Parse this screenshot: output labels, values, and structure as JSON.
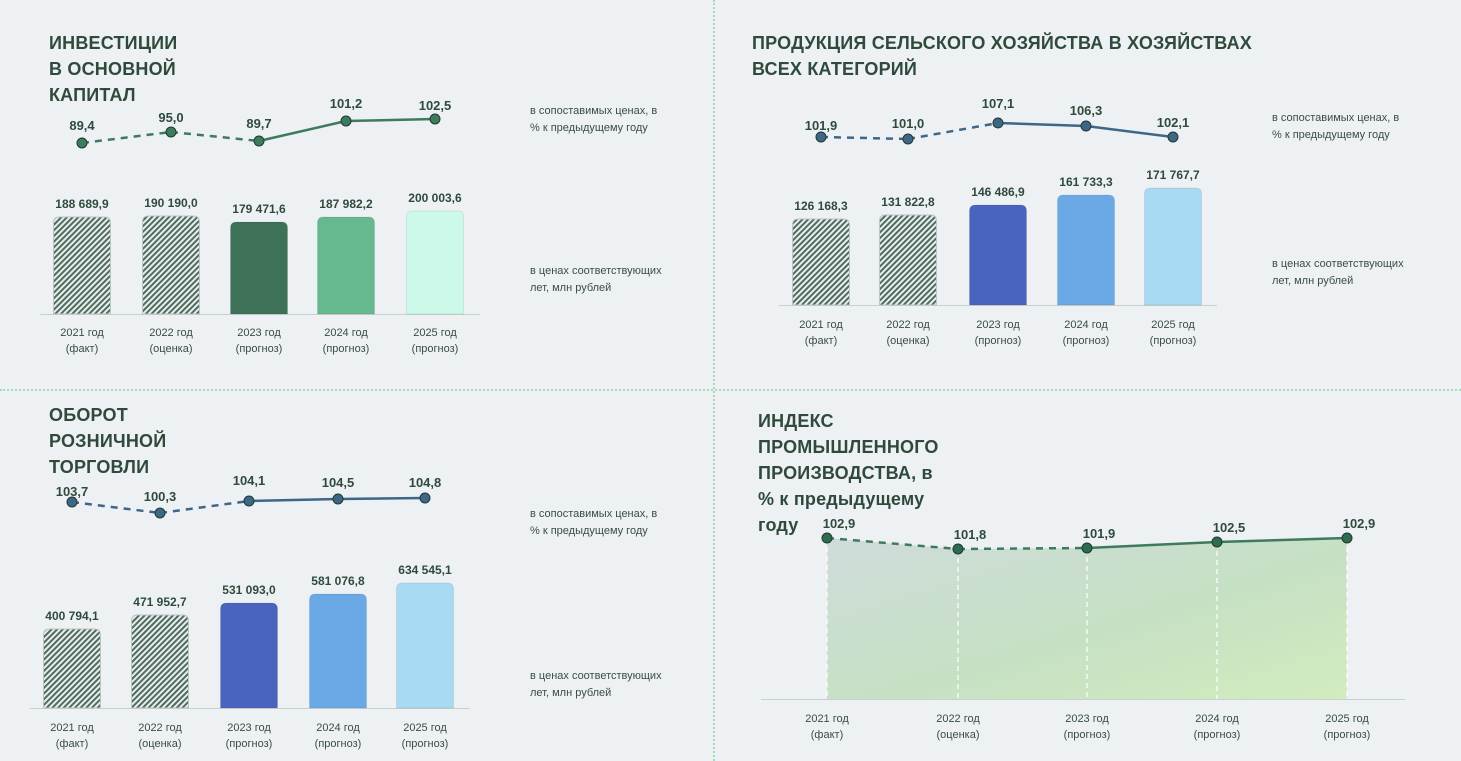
{
  "colors": {
    "green_dark": "#2f6b4f",
    "green_line": "#3e7a5e",
    "blue_line": "#3e6687",
    "investment_bars": [
      "#hatch",
      "#hatch",
      "#3d7158",
      "#66b88f",
      "#cdf9ea"
    ],
    "blue_bars": [
      "#hatch",
      "#hatch",
      "#4a63bd",
      "#6aa9e5",
      "#a8daf1"
    ]
  },
  "notes": {
    "comparable": "в сопоставимых ценах, в % к предыдущему году",
    "current": "в ценах соответствующих лет, млн рублей"
  },
  "panels": {
    "investment": {
      "title": "ИНВЕСТИЦИИ В ОСНОВНОЙ КАПИТАЛ"
    },
    "agriculture": {
      "title": "ПРОДУКЦИЯ СЕЛЬСКОГО ХОЗЯЙСТВА В ХОЗЯЙСТВАХ ВСЕХ КАТЕГОРИЙ"
    },
    "retail": {
      "title": "ОБОРОТ РОЗНИЧНОЙ ТОРГОВЛИ"
    },
    "industry": {
      "title": "ИНДЕКС ПРОМЫШЛЕННОГО ПРОИЗВОДСТВА, в % к предыдущему году"
    }
  },
  "chart_data": [
    {
      "id": "investment",
      "type": "bar",
      "categories": [
        [
          "2021 год",
          "(факт)"
        ],
        [
          "2022 год",
          "(оценка)"
        ],
        [
          "2023 год",
          "(прогноз)"
        ],
        [
          "2024 год",
          "(прогноз)"
        ],
        [
          "2025 год",
          "(прогноз)"
        ]
      ],
      "values": [
        188689.9,
        190190.0,
        179471.6,
        187982.2,
        200003.6
      ],
      "value_labels": [
        "188 689,9",
        "190 190,0",
        "179 471,6",
        "187 982,2",
        "200 003,6"
      ],
      "index_values": [
        89.4,
        95.0,
        89.7,
        101.2,
        102.5
      ],
      "index_labels": [
        "89,4",
        "95,0",
        "89,7",
        "101,2",
        "102,5"
      ],
      "index_dashed_until": 2,
      "ylim": [
        0,
        200003.6
      ]
    },
    {
      "id": "agriculture",
      "type": "bar",
      "categories": [
        [
          "2021 год",
          "(факт)"
        ],
        [
          "2022 год",
          "(оценка)"
        ],
        [
          "2023 год",
          "(прогноз)"
        ],
        [
          "2024 год",
          "(прогноз)"
        ],
        [
          "2025 год",
          "(прогноз)"
        ]
      ],
      "values": [
        126168.3,
        131822.8,
        146486.9,
        161733.3,
        171767.7
      ],
      "value_labels": [
        "126 168,3",
        "131 822,8",
        "146 486,9",
        "161 733,3",
        "171 767,7"
      ],
      "index_values": [
        101.9,
        101.0,
        107.1,
        106.3,
        102.1
      ],
      "index_labels": [
        "101,9",
        "101,0",
        "107,1",
        "106,3",
        "102,1"
      ],
      "index_dashed_until": 2,
      "ylim": [
        0,
        171767.7
      ]
    },
    {
      "id": "retail",
      "type": "bar",
      "categories": [
        [
          "2021 год",
          "(факт)"
        ],
        [
          "2022 год",
          "(оценка)"
        ],
        [
          "2023 год",
          "(прогноз)"
        ],
        [
          "2024 год",
          "(прогноз)"
        ],
        [
          "2025 год",
          "(прогноз)"
        ]
      ],
      "values": [
        400794.1,
        471952.7,
        531093.0,
        581076.8,
        634545.1
      ],
      "value_labels": [
        "400 794,1",
        "471 952,7",
        "531 093,0",
        "581 076,8",
        "634 545,1"
      ],
      "index_values": [
        103.7,
        100.3,
        104.1,
        104.5,
        104.8
      ],
      "index_labels": [
        "103,7",
        "100,3",
        "104,1",
        "104,5",
        "104,8"
      ],
      "index_dashed_until": 2,
      "ylim": [
        0,
        634545.1
      ]
    },
    {
      "id": "industry",
      "type": "area",
      "categories": [
        [
          "2021 год",
          "(факт)"
        ],
        [
          "2022 год",
          "(оценка)"
        ],
        [
          "2023 год",
          "(прогноз)"
        ],
        [
          "2024 год",
          "(прогноз)"
        ],
        [
          "2025 год",
          "(прогноз)"
        ]
      ],
      "index_values": [
        102.9,
        101.8,
        101.9,
        102.5,
        102.9
      ],
      "index_labels": [
        "102,9",
        "101,8",
        "101,9",
        "102,5",
        "102,9"
      ],
      "index_dashed_until": 2
    }
  ]
}
